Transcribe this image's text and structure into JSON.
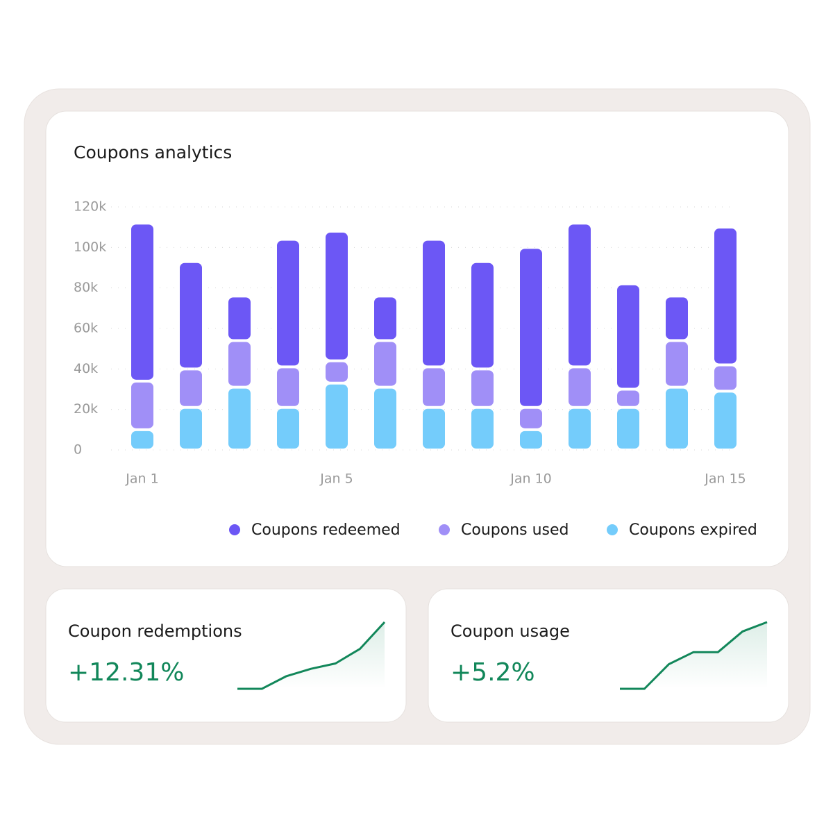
{
  "chart_data": {
    "type": "bar",
    "stacked": true,
    "title": "Coupons analytics",
    "categories": [
      "Jan 1",
      null,
      null,
      null,
      "Jan 5",
      null,
      null,
      null,
      "Jan 10",
      null,
      null,
      null,
      "Jan 15"
    ],
    "series": [
      {
        "name": "Coupons expired",
        "color": "#74ccfb",
        "values": [
          10000,
          21000,
          31000,
          21000,
          33000,
          31000,
          21000,
          21000,
          10000,
          21000,
          21000,
          31000,
          29000
        ]
      },
      {
        "name": "Coupons used",
        "color": "#a08ff7",
        "values": [
          24000,
          19000,
          23000,
          20000,
          11000,
          23000,
          20000,
          19000,
          11000,
          20000,
          9000,
          23000,
          13000
        ]
      },
      {
        "name": "Coupons redeemed",
        "color": "#6c57f5",
        "values": [
          78000,
          53000,
          22000,
          63000,
          64000,
          22000,
          63000,
          53000,
          79000,
          71000,
          52000,
          22000,
          68000
        ]
      }
    ],
    "legend_order": [
      2,
      1,
      0
    ],
    "ylim": [
      0,
      120000
    ],
    "yticks": [
      0,
      {
        "value": 20000,
        "label": "20k"
      },
      {
        "value": 40000,
        "label": "40k"
      },
      {
        "value": 60000,
        "label": "60k"
      },
      {
        "value": 80000,
        "label": "80k"
      },
      {
        "value": 100000,
        "label": "100k"
      },
      {
        "value": 120000,
        "label": "120k"
      }
    ],
    "grid": true
  },
  "cards": [
    {
      "title": "Coupon redemptions",
      "change": "+12.31%",
      "trend": [
        0,
        0,
        19,
        30,
        38,
        60,
        100
      ],
      "color": "#12875a"
    },
    {
      "title": "Coupon usage",
      "change": "+5.2%",
      "trend": [
        0,
        0,
        37,
        55,
        55,
        86,
        100
      ],
      "color": "#12875a"
    }
  ]
}
